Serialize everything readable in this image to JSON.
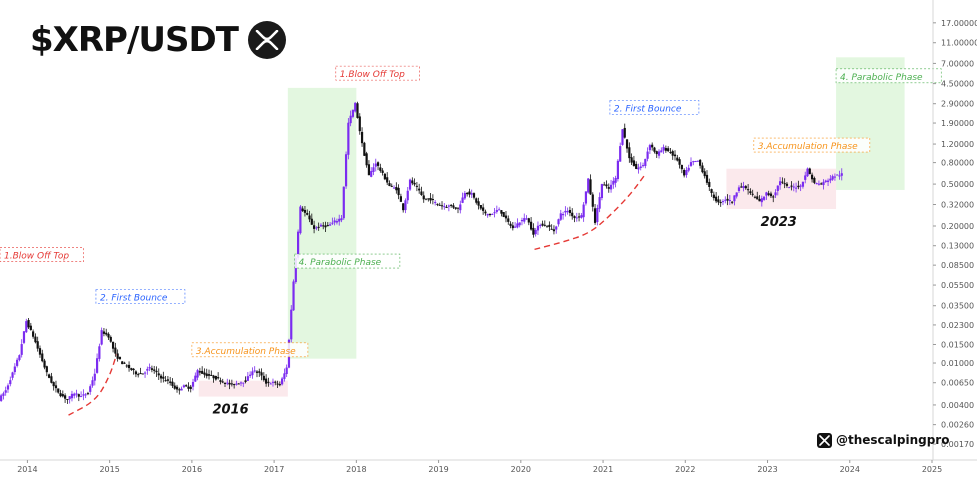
{
  "header": {
    "title": "$XRP/USDT",
    "logo_icon": "xrp-logo-icon"
  },
  "watermark": {
    "icon": "x-logo-icon",
    "handle": "@thescalpingpro"
  },
  "chart_data": {
    "type": "candlestick",
    "title": "$XRP/USDT",
    "y_scale": "log",
    "ylim": [
      0.0012,
      28
    ],
    "xlim": [
      "2013-09",
      "2025-01"
    ],
    "x_ticks": [
      "2014",
      "2015",
      "2016",
      "2017",
      "2018",
      "2019",
      "2020",
      "2021",
      "2022",
      "2023",
      "2024",
      "2025"
    ],
    "y_ticks": [
      "0.00170",
      "0.00260",
      "0.00400",
      "0.00650",
      "0.01000",
      "0.01500",
      "0.02300",
      "0.03500",
      "0.05500",
      "0.08500",
      "0.13000",
      "0.20000",
      "0.32000",
      "0.50000",
      "0.80000",
      "1.20000",
      "1.90000",
      "2.90000",
      "4.50000",
      "7.00000",
      "11.00000",
      "17.00000"
    ],
    "colors": {
      "up": "#7b2cf0",
      "down": "#111111",
      "label_red": "#e53935",
      "label_blue": "#2962ff",
      "label_orange": "#f7931a",
      "label_green": "#4caf50"
    },
    "price_path": [
      [
        "2013-09",
        0.0045
      ],
      [
        "2013-10",
        0.0055
      ],
      [
        "2013-11",
        0.008
      ],
      [
        "2013-12",
        0.012
      ],
      [
        "2014-01",
        0.025
      ],
      [
        "2014-02",
        0.018
      ],
      [
        "2014-03",
        0.012
      ],
      [
        "2014-04",
        0.008
      ],
      [
        "2014-05",
        0.006
      ],
      [
        "2014-06",
        0.005
      ],
      [
        "2014-07",
        0.0045
      ],
      [
        "2014-08",
        0.0052
      ],
      [
        "2014-09",
        0.0048
      ],
      [
        "2014-10",
        0.0052
      ],
      [
        "2014-11",
        0.008
      ],
      [
        "2014-12",
        0.02
      ],
      [
        "2015-01",
        0.018
      ],
      [
        "2015-02",
        0.012
      ],
      [
        "2015-03",
        0.01
      ],
      [
        "2015-04",
        0.009
      ],
      [
        "2015-05",
        0.008
      ],
      [
        "2015-06",
        0.008
      ],
      [
        "2015-07",
        0.009
      ],
      [
        "2015-08",
        0.008
      ],
      [
        "2015-09",
        0.007
      ],
      [
        "2015-10",
        0.0065
      ],
      [
        "2015-11",
        0.0055
      ],
      [
        "2015-12",
        0.006
      ],
      [
        "2016-01",
        0.0058
      ],
      [
        "2016-02",
        0.0085
      ],
      [
        "2016-03",
        0.0078
      ],
      [
        "2016-04",
        0.0075
      ],
      [
        "2016-05",
        0.007
      ],
      [
        "2016-06",
        0.0065
      ],
      [
        "2016-07",
        0.0062
      ],
      [
        "2016-08",
        0.0065
      ],
      [
        "2016-09",
        0.0068
      ],
      [
        "2016-10",
        0.0085
      ],
      [
        "2016-11",
        0.008
      ],
      [
        "2016-12",
        0.0065
      ],
      [
        "2017-01",
        0.0065
      ],
      [
        "2017-02",
        0.0062
      ],
      [
        "2017-03",
        0.009
      ],
      [
        "2017-04",
        0.06
      ],
      [
        "2017-05",
        0.3
      ],
      [
        "2017-06",
        0.25
      ],
      [
        "2017-07",
        0.19
      ],
      [
        "2017-08",
        0.2
      ],
      [
        "2017-09",
        0.2
      ],
      [
        "2017-10",
        0.22
      ],
      [
        "2017-11",
        0.24
      ],
      [
        "2017-12",
        1.9
      ],
      [
        "2018-01",
        2.9
      ],
      [
        "2018-02",
        1.2
      ],
      [
        "2018-03",
        0.6
      ],
      [
        "2018-04",
        0.8
      ],
      [
        "2018-05",
        0.62
      ],
      [
        "2018-06",
        0.48
      ],
      [
        "2018-07",
        0.45
      ],
      [
        "2018-08",
        0.29
      ],
      [
        "2018-09",
        0.54
      ],
      [
        "2018-10",
        0.46
      ],
      [
        "2018-11",
        0.36
      ],
      [
        "2018-12",
        0.36
      ],
      [
        "2019-01",
        0.32
      ],
      [
        "2019-02",
        0.31
      ],
      [
        "2019-03",
        0.31
      ],
      [
        "2019-04",
        0.29
      ],
      [
        "2019-05",
        0.42
      ],
      [
        "2019-06",
        0.4
      ],
      [
        "2019-07",
        0.31
      ],
      [
        "2019-08",
        0.26
      ],
      [
        "2019-09",
        0.26
      ],
      [
        "2019-10",
        0.29
      ],
      [
        "2019-11",
        0.23
      ],
      [
        "2019-12",
        0.19
      ],
      [
        "2020-01",
        0.22
      ],
      [
        "2020-02",
        0.24
      ],
      [
        "2020-03",
        0.17
      ],
      [
        "2020-04",
        0.21
      ],
      [
        "2020-05",
        0.2
      ],
      [
        "2020-06",
        0.18
      ],
      [
        "2020-07",
        0.26
      ],
      [
        "2020-08",
        0.28
      ],
      [
        "2020-09",
        0.24
      ],
      [
        "2020-10",
        0.25
      ],
      [
        "2020-11",
        0.55
      ],
      [
        "2020-12",
        0.22
      ],
      [
        "2021-01",
        0.5
      ],
      [
        "2021-02",
        0.45
      ],
      [
        "2021-03",
        0.57
      ],
      [
        "2021-04",
        1.7
      ],
      [
        "2021-05",
        0.88
      ],
      [
        "2021-06",
        0.7
      ],
      [
        "2021-07",
        0.75
      ],
      [
        "2021-08",
        1.2
      ],
      [
        "2021-09",
        0.95
      ],
      [
        "2021-10",
        1.1
      ],
      [
        "2021-11",
        1.0
      ],
      [
        "2021-12",
        0.85
      ],
      [
        "2022-01",
        0.6
      ],
      [
        "2022-02",
        0.8
      ],
      [
        "2022-03",
        0.83
      ],
      [
        "2022-04",
        0.6
      ],
      [
        "2022-05",
        0.4
      ],
      [
        "2022-06",
        0.33
      ],
      [
        "2022-07",
        0.36
      ],
      [
        "2022-08",
        0.34
      ],
      [
        "2022-09",
        0.48
      ],
      [
        "2022-10",
        0.46
      ],
      [
        "2022-11",
        0.39
      ],
      [
        "2022-12",
        0.34
      ],
      [
        "2023-01",
        0.41
      ],
      [
        "2023-02",
        0.38
      ],
      [
        "2023-03",
        0.54
      ],
      [
        "2023-04",
        0.47
      ],
      [
        "2023-05",
        0.47
      ],
      [
        "2023-06",
        0.48
      ],
      [
        "2023-07",
        0.69
      ],
      [
        "2023-08",
        0.51
      ],
      [
        "2023-09",
        0.5
      ],
      [
        "2023-10",
        0.55
      ],
      [
        "2023-11",
        0.6
      ],
      [
        "2023-12",
        0.62
      ]
    ],
    "boxes": [
      {
        "name": "parabolic-2017",
        "x": [
          "2017-03",
          "2018-01"
        ],
        "y": [
          0.011,
          4.1
        ],
        "fill": "#e3f7e0"
      },
      {
        "name": "parabolic-2024",
        "x": [
          "2023-11",
          "2024-09"
        ],
        "y": [
          0.44,
          8.0
        ],
        "fill": "#e3f7e0"
      },
      {
        "name": "accumulation-2016",
        "x": [
          "2016-02",
          "2017-03"
        ],
        "y": [
          0.0048,
          0.0068
        ],
        "fill": "#fbe9ec"
      },
      {
        "name": "accumulation-2023",
        "x": [
          "2022-07",
          "2023-11"
        ],
        "y": [
          0.29,
          0.7
        ],
        "fill": "#fbe9ec"
      }
    ],
    "curves": [
      {
        "name": "bounce-curve-2014",
        "points": [
          [
            "2014-07",
            0.0032
          ],
          [
            "2014-11",
            0.0044
          ],
          [
            "2015-01",
            0.0075
          ],
          [
            "2015-02",
            0.012
          ]
        ]
      },
      {
        "name": "bounce-curve-2020",
        "points": [
          [
            "2020-03",
            0.12
          ],
          [
            "2020-07",
            0.14
          ],
          [
            "2020-11",
            0.17
          ],
          [
            "2021-02",
            0.25
          ],
          [
            "2021-05",
            0.4
          ],
          [
            "2021-07",
            0.6
          ]
        ]
      }
    ],
    "annotations": [
      {
        "text": "1.Blow Off Top",
        "x": "2013-09",
        "y": 0.1,
        "color": "#e53935"
      },
      {
        "text": "2. First Bounce",
        "x": "2014-11",
        "y": 0.04,
        "color": "#2962ff"
      },
      {
        "text": "3.Accumulation Phase",
        "x": "2016-01",
        "y": 0.0125,
        "color": "#f7931a"
      },
      {
        "text": "4. Parabolic Phase",
        "x": "2017-04",
        "y": 0.087,
        "color": "#4caf50"
      },
      {
        "text": "1.Blow Off Top",
        "x": "2017-10",
        "y": 5.3,
        "color": "#e53935"
      },
      {
        "text": "2. First Bounce",
        "x": "2021-02",
        "y": 2.5,
        "color": "#2962ff"
      },
      {
        "text": "3.Accumulation Phase",
        "x": "2022-11",
        "y": 1.1,
        "color": "#f7931a"
      },
      {
        "text": "4. Parabolic Phase",
        "x": "2023-11",
        "y": 5.0,
        "color": "#4caf50"
      }
    ],
    "year_labels": [
      {
        "text": "2016",
        "x": "2016-04",
        "y": 0.0033
      },
      {
        "text": "2023",
        "x": "2022-12",
        "y": 0.2
      }
    ]
  }
}
